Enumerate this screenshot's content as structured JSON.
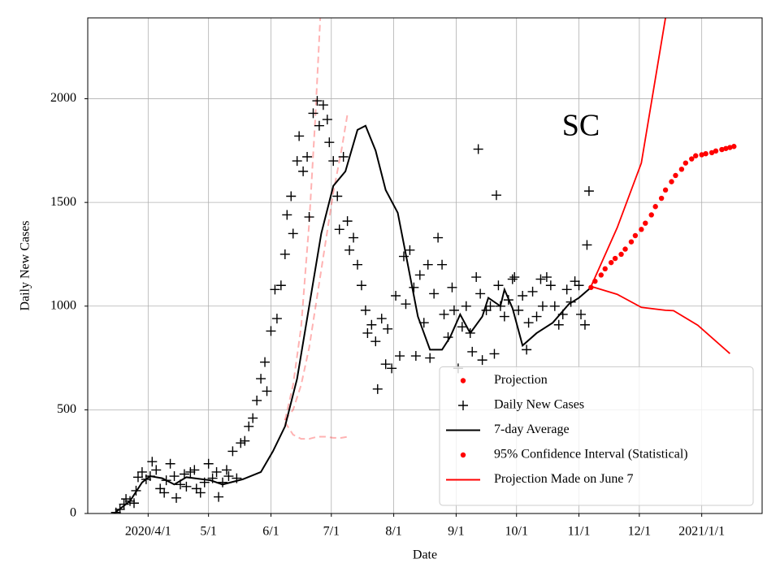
{
  "chart_data": {
    "type": "line",
    "annotation": "SC",
    "xlabel": "Date",
    "ylabel": "Daily New Cases",
    "xlim": [
      61,
      396
    ],
    "ylim": [
      0,
      2390
    ],
    "xticks": [
      {
        "value": 91,
        "label": "2020/4/1"
      },
      {
        "value": 121,
        "label": "5/1"
      },
      {
        "value": 152,
        "label": "6/1"
      },
      {
        "value": 182,
        "label": "7/1"
      },
      {
        "value": 213,
        "label": "8/1"
      },
      {
        "value": 244,
        "label": "9/1"
      },
      {
        "value": 274,
        "label": "10/1"
      },
      {
        "value": 305,
        "label": "11/1"
      },
      {
        "value": 335,
        "label": "12/1"
      },
      {
        "value": 366,
        "label": "2021/1/1"
      }
    ],
    "yticks": [
      0,
      500,
      1000,
      1500,
      2000
    ],
    "grid": true,
    "legend": "lower right",
    "series": [
      {
        "name": "Projection",
        "color": "#ff0000",
        "style": "dot",
        "x": [
          311,
          313,
          316,
          318,
          321,
          323,
          326,
          328,
          331,
          333,
          336,
          338,
          341,
          343,
          346,
          348,
          351,
          353,
          356,
          358,
          361,
          363,
          366,
          368,
          371,
          373,
          376,
          378,
          380,
          382
        ],
        "values": [
          1090,
          1120,
          1150,
          1180,
          1210,
          1230,
          1250,
          1275,
          1310,
          1340,
          1370,
          1400,
          1440,
          1480,
          1520,
          1560,
          1600,
          1630,
          1660,
          1690,
          1710,
          1725,
          1730,
          1735,
          1740,
          1748,
          1755,
          1760,
          1765,
          1770
        ]
      },
      {
        "name": "Daily New Cases",
        "color": "#000000",
        "style": "plus",
        "x": [
          75,
          77,
          79,
          80,
          82,
          84,
          85,
          86,
          88,
          90,
          92,
          93,
          95,
          97,
          99,
          100,
          102,
          104,
          105,
          107,
          109,
          110,
          112,
          114,
          115,
          117,
          119,
          121,
          123,
          125,
          126,
          128,
          130,
          131,
          133,
          135,
          137,
          139,
          141,
          143,
          145,
          147,
          149,
          150,
          152,
          154,
          155,
          157,
          159,
          160,
          162,
          163,
          165,
          166,
          168,
          170,
          171,
          173,
          175,
          176,
          178,
          180,
          181,
          183,
          185,
          186,
          188,
          190,
          191,
          193,
          195,
          197,
          199,
          200,
          202,
          204,
          205,
          207,
          209,
          210,
          212,
          214,
          216,
          218,
          219,
          221,
          223,
          224,
          226,
          228,
          230,
          231,
          233,
          235,
          237,
          238,
          240,
          242,
          243,
          245,
          247,
          249,
          251,
          252,
          254,
          255,
          256,
          257,
          259,
          261,
          263,
          264,
          265,
          266,
          268,
          270,
          272,
          273,
          275,
          277,
          279,
          280,
          282,
          284,
          286,
          287,
          289,
          291,
          293,
          295,
          297,
          299,
          301,
          303,
          305,
          306,
          308,
          309,
          310
        ],
        "values": [
          5,
          20,
          45,
          70,
          60,
          50,
          110,
          175,
          200,
          165,
          180,
          250,
          210,
          120,
          100,
          160,
          240,
          180,
          75,
          140,
          190,
          130,
          200,
          210,
          120,
          100,
          150,
          240,
          170,
          200,
          80,
          150,
          210,
          180,
          300,
          170,
          340,
          350,
          420,
          460,
          545,
          650,
          730,
          590,
          880,
          1080,
          940,
          1100,
          1250,
          1440,
          1530,
          1350,
          1700,
          1820,
          1650,
          1720,
          1430,
          1930,
          1990,
          1870,
          1970,
          1900,
          1790,
          1700,
          1530,
          1370,
          1720,
          1410,
          1270,
          1330,
          1200,
          1100,
          980,
          870,
          910,
          830,
          600,
          940,
          720,
          890,
          700,
          1050,
          760,
          1240,
          1010,
          1270,
          1090,
          760,
          1150,
          920,
          1200,
          750,
          1060,
          1330,
          1200,
          960,
          850,
          1090,
          980,
          700,
          900,
          1000,
          870,
          780,
          1140,
          1757,
          1060,
          740,
          980,
          1000,
          770,
          1535,
          1100,
          1000,
          950,
          1030,
          1130,
          1140,
          980,
          1050,
          790,
          920,
          1070,
          950,
          1130,
          1000,
          1140,
          1100,
          1000,
          910,
          960,
          1080,
          1020,
          1120,
          1100,
          960,
          910,
          1295,
          1555
        ]
      },
      {
        "name": "7-day Average",
        "color": "#000000",
        "style": "line",
        "x": [
          74,
          82,
          88,
          92,
          98,
          104,
          110,
          122,
          128,
          138,
          147,
          153,
          159,
          165,
          171,
          177,
          183,
          189,
          195,
          199,
          204,
          209,
          215,
          221,
          225,
          231,
          237,
          241,
          246,
          251,
          257,
          260,
          266,
          268,
          272,
          277,
          284,
          292,
          300,
          305,
          311
        ],
        "values": [
          0,
          60,
          150,
          180,
          170,
          140,
          175,
          160,
          140,
          165,
          200,
          300,
          420,
          650,
          1000,
          1350,
          1580,
          1650,
          1850,
          1870,
          1750,
          1560,
          1450,
          1150,
          950,
          790,
          790,
          850,
          960,
          870,
          950,
          1040,
          1000,
          1080,
          990,
          810,
          870,
          920,
          1010,
          1040,
          1090
        ]
      },
      {
        "name": "95% Confidence Interval (Statistical)",
        "color": "#ff0000",
        "style": "band-lines",
        "x": [
          311,
          324,
          336,
          348,
          352,
          364,
          380
        ],
        "upper": [
          1095,
          1378,
          1690,
          2390,
          null,
          null,
          null
        ],
        "lower": [
          1095,
          1057,
          994,
          980,
          978,
          908,
          771
        ]
      },
      {
        "name": "Projection Made on June 7",
        "color": "#ff0000",
        "style": "dashed",
        "lines": [
          {
            "x": [
              159,
              163,
              167,
              171,
              174,
              176.5
            ],
            "values": [
              450,
              620,
              900,
              1400,
              1900,
              2390
            ]
          },
          {
            "x": [
              159,
              163,
              167,
              171,
              175,
              179,
              183,
              187,
              190
            ],
            "values": [
              450,
              500,
              620,
              800,
              1050,
              1300,
              1550,
              1750,
              1925
            ]
          },
          {
            "x": [
              159,
              163,
              167,
              171,
              175,
              179,
              183,
              187,
              190
            ],
            "values": [
              440,
              380,
              360,
              360,
              370,
              370,
              365,
              365,
              370
            ]
          }
        ]
      }
    ]
  }
}
